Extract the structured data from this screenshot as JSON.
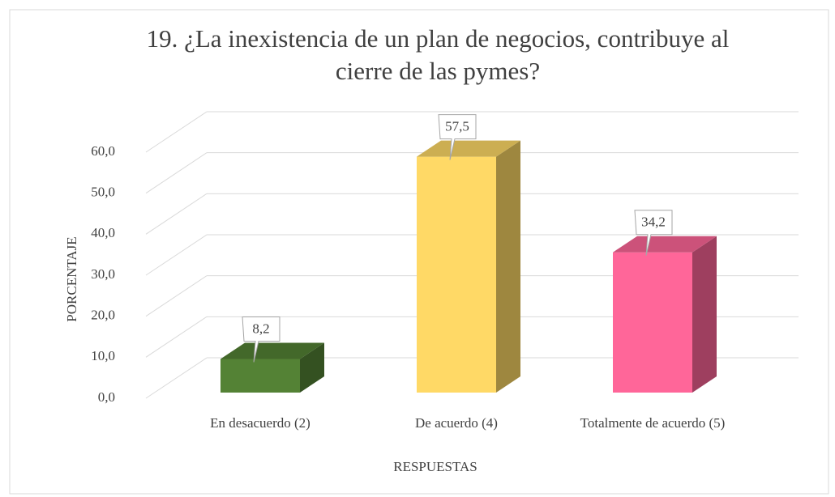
{
  "chart_data": {
    "type": "bar3d",
    "title": "19. ¿La inexistencia de un plan de negocios, contribuye al cierre de las pymes?",
    "x_label": "RESPUESTAS",
    "y_label": "PORCENTAJE",
    "categories": [
      "En desacuerdo (2)",
      "De acuerdo (4)",
      "Totalmente de acuerdo (5)"
    ],
    "values": [
      8.2,
      57.5,
      34.2
    ],
    "value_labels": [
      "8,2",
      "57,5",
      "34,2"
    ],
    "colors": [
      "#548235",
      "#ffd966",
      "#ff6699"
    ],
    "ylim": [
      0,
      60
    ],
    "yticks": [
      {
        "value": 0,
        "label": "0,0"
      },
      {
        "value": 10,
        "label": "10,0"
      },
      {
        "value": 20,
        "label": "20,0"
      },
      {
        "value": 30,
        "label": "30,0"
      },
      {
        "value": 40,
        "label": "40,0"
      },
      {
        "value": 50,
        "label": "50,0"
      },
      {
        "value": 60,
        "label": "60,0"
      }
    ],
    "grid": true
  }
}
